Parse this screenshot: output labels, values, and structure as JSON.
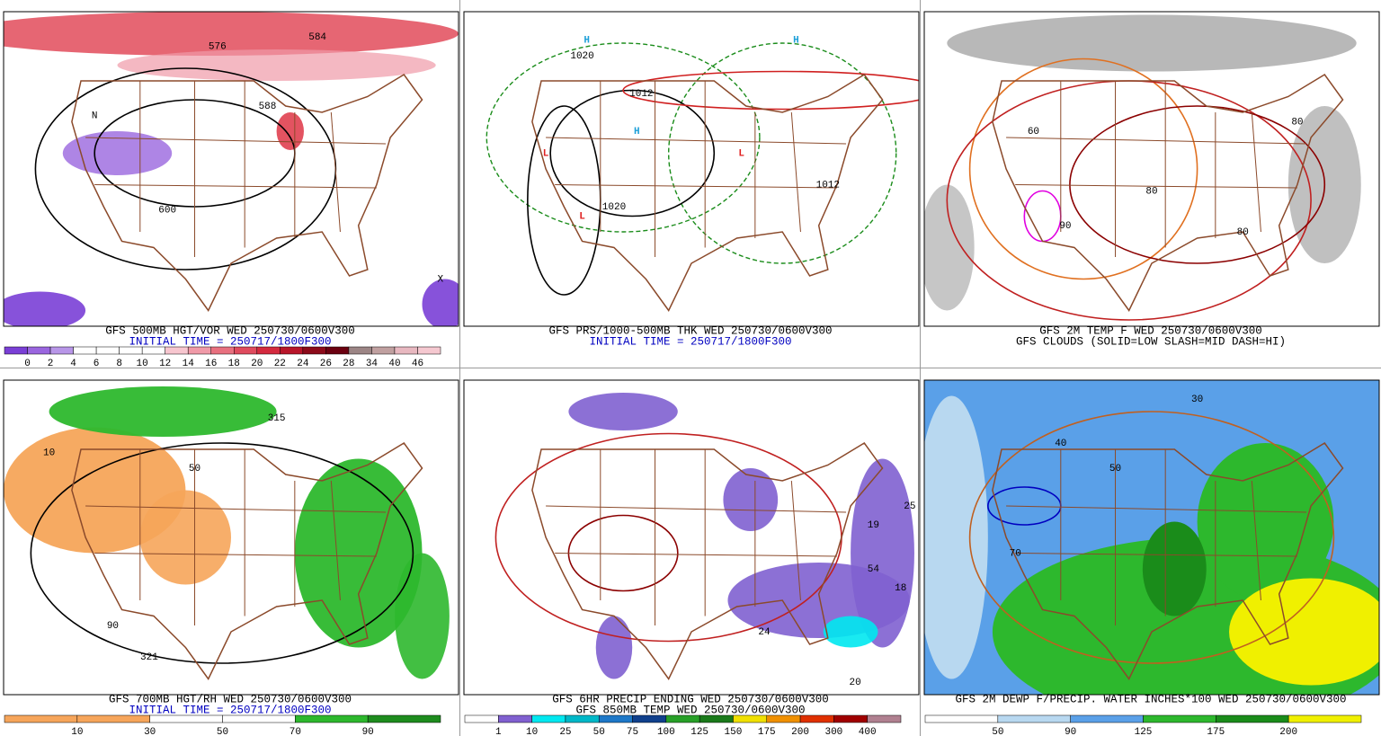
{
  "panels": [
    {
      "captions": [
        "GFS 500MB HGT/VOR WED 250730/0600V300",
        "INITIAL TIME = 250717/1800F300"
      ],
      "caption_colors": [
        "#000000",
        "#0000c0"
      ],
      "colorbar": {
        "labels": [
          0,
          2,
          4,
          6,
          8,
          10,
          12,
          14,
          16,
          18,
          20,
          22,
          24,
          26,
          28,
          34,
          40,
          46
        ],
        "colors": [
          "#7a3fd6",
          "#9a66df",
          "#b896e8",
          "#ffffff",
          "#ffffff",
          "#ffffff",
          "#ffffff",
          "#f7c6cf",
          "#f09aa8",
          "#e8707f",
          "#df4b5e",
          "#d42a3f",
          "#b8152a",
          "#8c0a1a",
          "#6b0010",
          "#9c8585",
          "#c0a0a0",
          "#e8b8c0",
          "#f5c8d0"
        ]
      },
      "map_labels": [
        "576",
        "584",
        "588",
        "600",
        "N",
        "X"
      ]
    },
    {
      "captions": [
        "GFS PRS/1000-500MB THK WED 250730/0600V300",
        "INITIAL TIME = 250717/1800F300"
      ],
      "caption_colors": [
        "#000000",
        "#0000c0"
      ],
      "map_labels": [
        "H",
        "H",
        "H",
        "L",
        "L",
        "L",
        "1012",
        "1020",
        "1012",
        "1020"
      ]
    },
    {
      "captions": [
        "GFS 2M TEMP F WED 250730/0600V300",
        "GFS CLOUDS (SOLID=LOW SLASH=MID DASH=HI)"
      ],
      "caption_colors": [
        "#000000",
        "#000000"
      ],
      "map_labels": [
        "80",
        "80",
        "80",
        "90",
        "60"
      ]
    },
    {
      "captions": [
        "GFS 700MB HGT/RH WED 250730/0600V300",
        "INITIAL TIME = 250717/1800F300"
      ],
      "caption_colors": [
        "#000000",
        "#0000c0"
      ],
      "colorbar": {
        "labels": [
          10,
          30,
          50,
          70,
          90
        ],
        "colors": [
          "#f6a55a",
          "#f6a55a",
          "#ffffff",
          "#ffffff",
          "#2db82d",
          "#1e8c1e"
        ]
      },
      "map_labels": [
        "50",
        "90",
        "10",
        "315",
        "321"
      ]
    },
    {
      "captions": [
        "GFS 6HR PRECIP ENDING WED 250730/0600V300",
        "GFS 850MB TEMP WED 250730/0600V300"
      ],
      "caption_colors": [
        "#000000",
        "#000000"
      ],
      "colorbar": {
        "labels": [
          1,
          10,
          25,
          50,
          75,
          100,
          125,
          150,
          175,
          200,
          300,
          400
        ],
        "colors": [
          "#ffffff",
          "#8060d0",
          "#00e8f0",
          "#00b8c8",
          "#1e78c8",
          "#10408c",
          "#28a028",
          "#1a7a1a",
          "#f0e000",
          "#f09000",
          "#e03000",
          "#a00000",
          "#b08090"
        ]
      },
      "map_labels": [
        "25",
        "19",
        "54",
        "18",
        "24",
        "20"
      ]
    },
    {
      "captions": [
        "GFS 2M DEWP F/PRECIP. WATER INCHES*100 WED 250730/0600V300"
      ],
      "caption_colors": [
        "#000000"
      ],
      "colorbar": {
        "labels": [
          50,
          90,
          125,
          175,
          200
        ],
        "colors": [
          "#ffffff",
          "#b8d8f0",
          "#5aa0e8",
          "#2db82d",
          "#1a8c1a",
          "#f0f000"
        ]
      },
      "map_labels": [
        "40",
        "30",
        "50",
        "70"
      ]
    }
  ]
}
